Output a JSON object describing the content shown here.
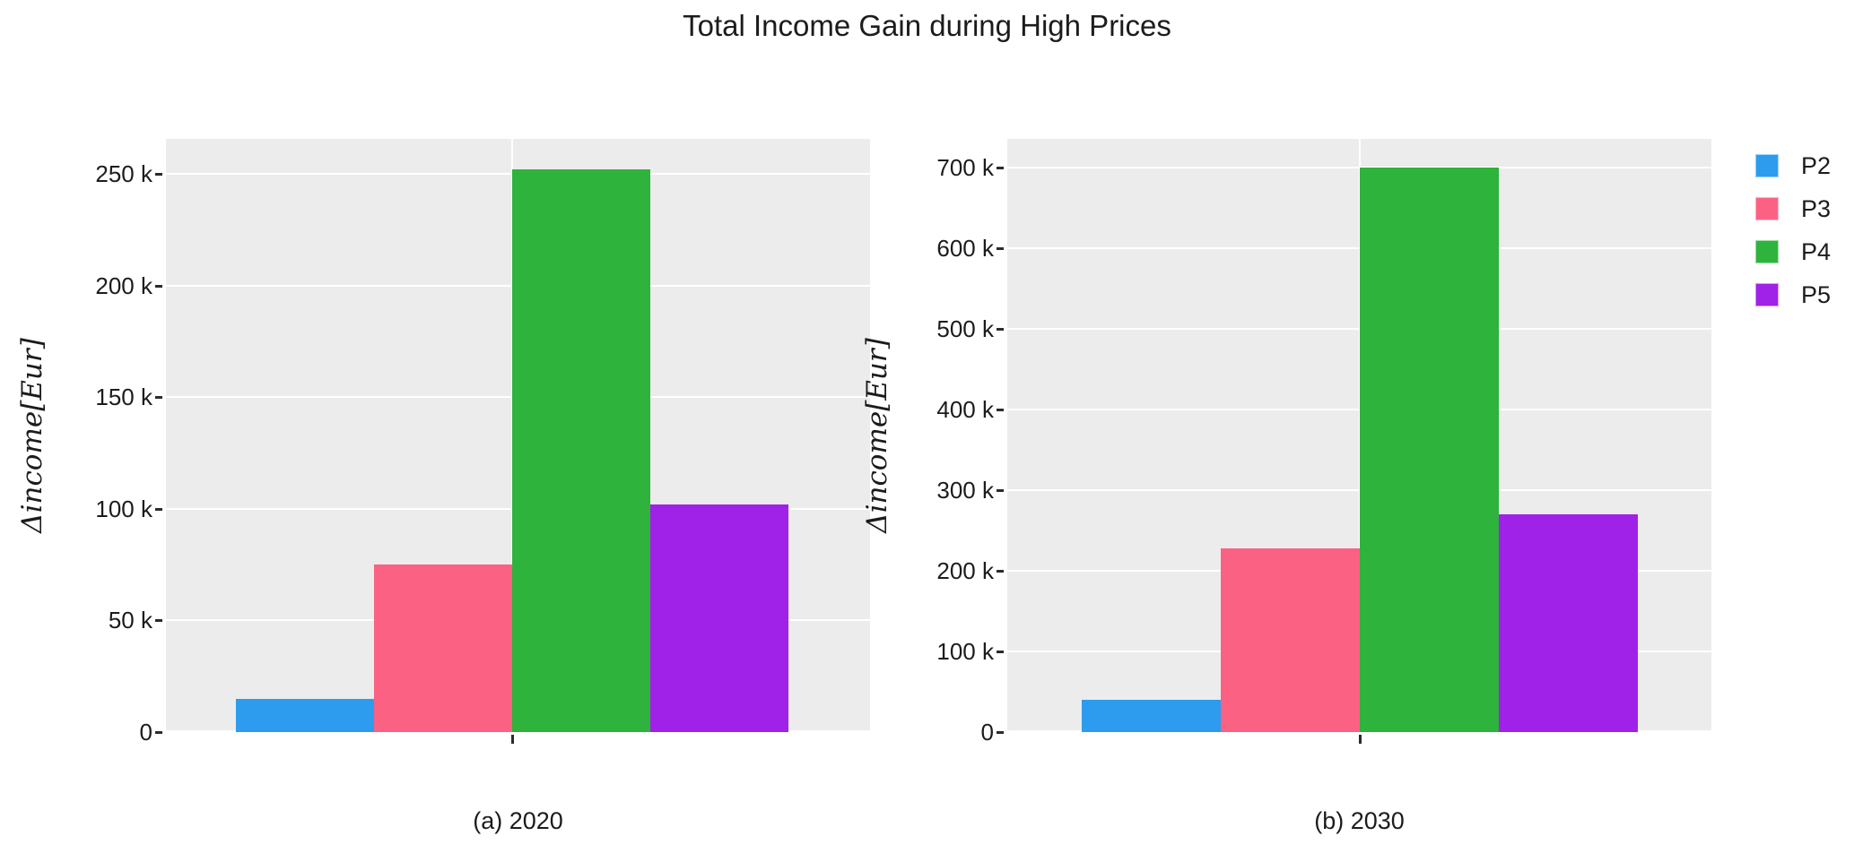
{
  "title": "Total Income Gain during High Prices",
  "legend": {
    "position": "upper-right-outside",
    "items": [
      {
        "label": "P2",
        "color": "#2D9BEE"
      },
      {
        "label": "P3",
        "color": "#FB6183"
      },
      {
        "label": "P4",
        "color": "#2EB33C"
      },
      {
        "label": "P5",
        "color": "#A021E8"
      }
    ]
  },
  "chart_data": [
    {
      "type": "bar",
      "panel_caption": "(a) 2020",
      "categories": [
        "P2",
        "P3",
        "P4",
        "P5"
      ],
      "values": [
        15000,
        75000,
        252000,
        102000
      ],
      "title": "",
      "xlabel": "",
      "ylabel": "Δincome[Eur]",
      "ylim": [
        0,
        265650
      ],
      "grid": true,
      "plot_background": "#ececec",
      "gridline_color": "#ffffff",
      "yticks": [
        {
          "value": 0,
          "label": "0"
        },
        {
          "value": 50000,
          "label": "50 k"
        },
        {
          "value": 100000,
          "label": "100 k"
        },
        {
          "value": 150000,
          "label": "150 k"
        },
        {
          "value": 200000,
          "label": "200 k"
        },
        {
          "value": 250000,
          "label": "250 k"
        }
      ]
    },
    {
      "type": "bar",
      "panel_caption": "(b) 2030",
      "categories": [
        "P2",
        "P3",
        "P4",
        "P5"
      ],
      "values": [
        40000,
        228000,
        700000,
        270000
      ],
      "title": "",
      "xlabel": "",
      "ylabel": "Δincome[Eur]",
      "ylim": [
        0,
        735556
      ],
      "grid": true,
      "plot_background": "#ececec",
      "gridline_color": "#ffffff",
      "yticks": [
        {
          "value": 0,
          "label": "0"
        },
        {
          "value": 100000,
          "label": "100 k"
        },
        {
          "value": 200000,
          "label": "200 k"
        },
        {
          "value": 300000,
          "label": "300 k"
        },
        {
          "value": 400000,
          "label": "400 k"
        },
        {
          "value": 500000,
          "label": "500 k"
        },
        {
          "value": 600000,
          "label": "600 k"
        },
        {
          "value": 700000,
          "label": "700 k"
        }
      ]
    }
  ]
}
